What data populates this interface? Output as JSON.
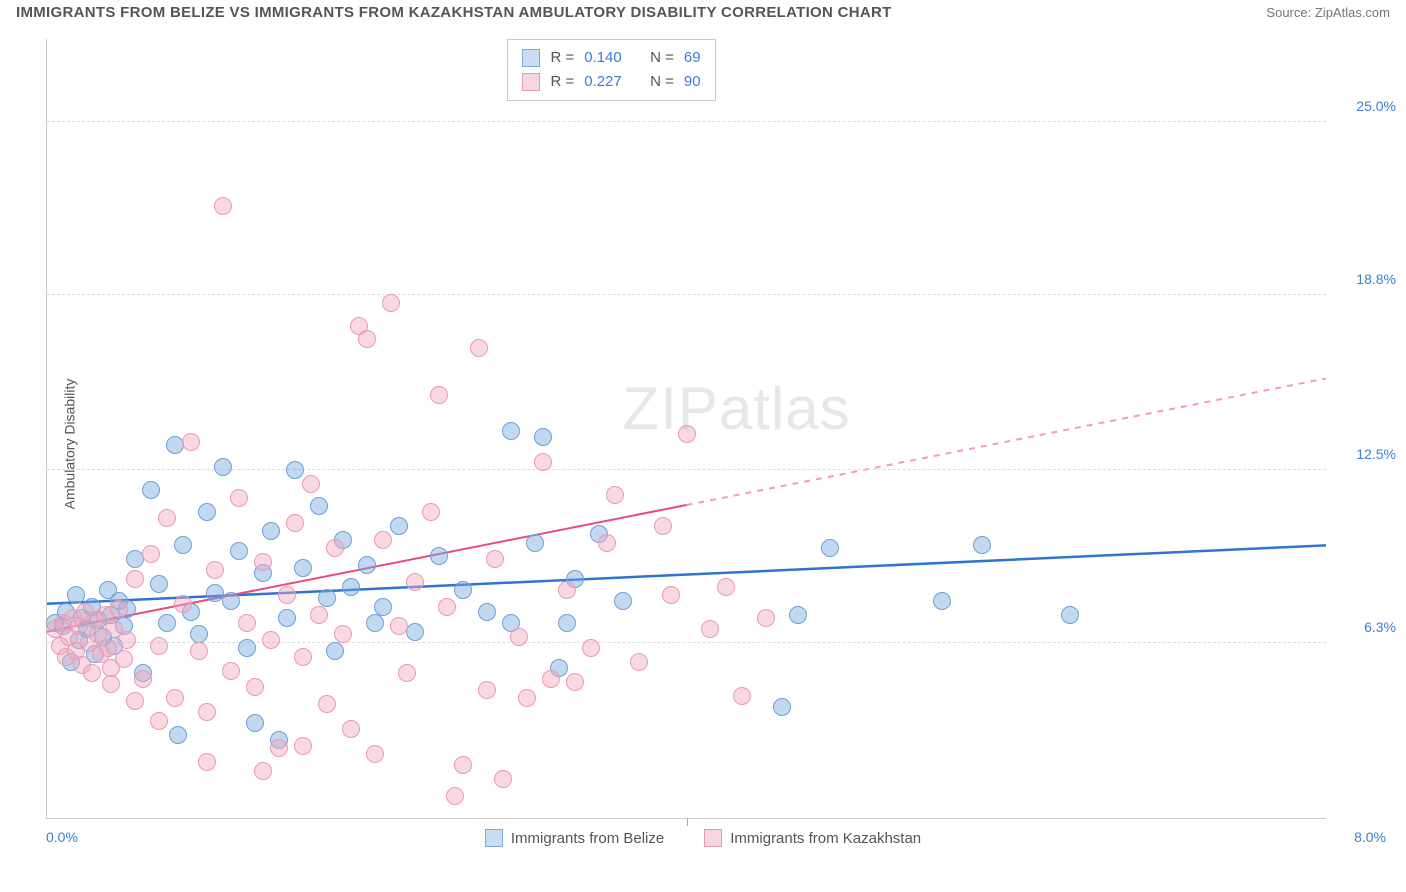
{
  "header": {
    "title": "IMMIGRANTS FROM BELIZE VS IMMIGRANTS FROM KAZAKHSTAN AMBULATORY DISABILITY CORRELATION CHART",
    "source_label": "Source:",
    "source_name": "ZipAtlas.com"
  },
  "chart": {
    "type": "scatter",
    "ylabel": "Ambulatory Disability",
    "xlim": [
      0.0,
      8.0
    ],
    "ylim": [
      0.0,
      28.0
    ],
    "x_ticks": [
      {
        "v": 0.0,
        "label": "0.0%"
      },
      {
        "v": 8.0,
        "label": "8.0%"
      }
    ],
    "x_minor_tick": 4.0,
    "y_ticks": [
      {
        "v": 6.3,
        "label": "6.3%"
      },
      {
        "v": 12.5,
        "label": "12.5%"
      },
      {
        "v": 18.8,
        "label": "18.8%"
      },
      {
        "v": 25.0,
        "label": "25.0%"
      }
    ],
    "background_color": "#ffffff",
    "grid_color": "#dcdcdc",
    "axis_color": "#cccccc",
    "tick_label_color": "#3b7dd8",
    "point_radius": 9,
    "point_opacity": 0.55,
    "watermark": "ZIPatlas",
    "series": [
      {
        "name": "Immigrants from Belize",
        "color_fill": "rgba(120,169,225,0.45)",
        "color_stroke": "#6fa0d8",
        "swatch_fill": "#c8dcf2",
        "swatch_border": "#7fa8d6",
        "R": "0.140",
        "N": "69",
        "regression": {
          "x1": 0.0,
          "y1": 7.7,
          "x2": 8.0,
          "y2": 9.8,
          "xmax_solid": 8.0,
          "color": "#2f74d0",
          "width": 2.5
        },
        "points": [
          [
            0.05,
            7.0
          ],
          [
            0.1,
            6.9
          ],
          [
            0.12,
            7.4
          ],
          [
            0.15,
            5.6
          ],
          [
            0.18,
            8.0
          ],
          [
            0.2,
            6.4
          ],
          [
            0.22,
            7.2
          ],
          [
            0.25,
            6.8
          ],
          [
            0.28,
            7.6
          ],
          [
            0.3,
            5.9
          ],
          [
            0.32,
            7.1
          ],
          [
            0.35,
            6.5
          ],
          [
            0.38,
            8.2
          ],
          [
            0.4,
            7.3
          ],
          [
            0.42,
            6.2
          ],
          [
            0.45,
            7.8
          ],
          [
            0.48,
            6.9
          ],
          [
            0.5,
            7.5
          ],
          [
            0.55,
            9.3
          ],
          [
            0.6,
            5.2
          ],
          [
            0.65,
            11.8
          ],
          [
            0.7,
            8.4
          ],
          [
            0.75,
            7.0
          ],
          [
            0.8,
            13.4
          ],
          [
            0.82,
            3.0
          ],
          [
            0.85,
            9.8
          ],
          [
            0.9,
            7.4
          ],
          [
            0.95,
            6.6
          ],
          [
            1.0,
            11.0
          ],
          [
            1.05,
            8.1
          ],
          [
            1.1,
            12.6
          ],
          [
            1.15,
            7.8
          ],
          [
            1.2,
            9.6
          ],
          [
            1.25,
            6.1
          ],
          [
            1.3,
            3.4
          ],
          [
            1.35,
            8.8
          ],
          [
            1.4,
            10.3
          ],
          [
            1.45,
            2.8
          ],
          [
            1.5,
            7.2
          ],
          [
            1.55,
            12.5
          ],
          [
            1.6,
            9.0
          ],
          [
            1.7,
            11.2
          ],
          [
            1.75,
            7.9
          ],
          [
            1.8,
            6.0
          ],
          [
            1.85,
            10.0
          ],
          [
            1.9,
            8.3
          ],
          [
            2.0,
            9.1
          ],
          [
            2.1,
            7.6
          ],
          [
            2.2,
            10.5
          ],
          [
            2.3,
            6.7
          ],
          [
            2.45,
            9.4
          ],
          [
            2.6,
            8.2
          ],
          [
            2.75,
            7.4
          ],
          [
            2.9,
            13.9
          ],
          [
            3.05,
            9.9
          ],
          [
            3.1,
            13.7
          ],
          [
            3.2,
            5.4
          ],
          [
            3.25,
            7.0
          ],
          [
            3.3,
            8.6
          ],
          [
            3.45,
            10.2
          ],
          [
            3.6,
            7.8
          ],
          [
            4.6,
            4.0
          ],
          [
            4.7,
            7.3
          ],
          [
            4.9,
            9.7
          ],
          [
            5.6,
            7.8
          ],
          [
            5.85,
            9.8
          ],
          [
            6.4,
            7.3
          ],
          [
            2.9,
            7.0
          ],
          [
            2.05,
            7.0
          ]
        ]
      },
      {
        "name": "Immigrants from Kazakhstan",
        "color_fill": "rgba(241,169,191,0.45)",
        "color_stroke": "#e79bb2",
        "swatch_fill": "#f6d6df",
        "swatch_border": "#e29ab2",
        "R": "0.227",
        "N": "90",
        "regression": {
          "x1": 0.0,
          "y1": 6.7,
          "x2": 8.0,
          "y2": 15.8,
          "xmax_solid": 4.0,
          "color": "#e84c7a",
          "width": 2
        },
        "points": [
          [
            0.05,
            6.8
          ],
          [
            0.08,
            6.2
          ],
          [
            0.1,
            7.0
          ],
          [
            0.12,
            5.8
          ],
          [
            0.14,
            6.5
          ],
          [
            0.16,
            7.2
          ],
          [
            0.18,
            6.0
          ],
          [
            0.2,
            6.9
          ],
          [
            0.22,
            5.5
          ],
          [
            0.24,
            7.4
          ],
          [
            0.26,
            6.3
          ],
          [
            0.28,
            5.2
          ],
          [
            0.3,
            7.1
          ],
          [
            0.32,
            6.6
          ],
          [
            0.34,
            5.9
          ],
          [
            0.36,
            7.3
          ],
          [
            0.38,
            6.1
          ],
          [
            0.4,
            5.4
          ],
          [
            0.42,
            6.8
          ],
          [
            0.45,
            7.5
          ],
          [
            0.48,
            5.7
          ],
          [
            0.5,
            6.4
          ],
          [
            0.55,
            8.6
          ],
          [
            0.6,
            5.0
          ],
          [
            0.65,
            9.5
          ],
          [
            0.7,
            6.2
          ],
          [
            0.75,
            10.8
          ],
          [
            0.8,
            4.3
          ],
          [
            0.85,
            7.7
          ],
          [
            0.9,
            13.5
          ],
          [
            0.95,
            6.0
          ],
          [
            1.0,
            3.8
          ],
          [
            1.05,
            8.9
          ],
          [
            1.1,
            22.0
          ],
          [
            1.15,
            5.3
          ],
          [
            1.2,
            11.5
          ],
          [
            1.25,
            7.0
          ],
          [
            1.3,
            4.7
          ],
          [
            1.35,
            9.2
          ],
          [
            1.4,
            6.4
          ],
          [
            1.45,
            2.5
          ],
          [
            1.5,
            8.0
          ],
          [
            1.55,
            10.6
          ],
          [
            1.6,
            5.8
          ],
          [
            1.65,
            12.0
          ],
          [
            1.7,
            7.3
          ],
          [
            1.75,
            4.1
          ],
          [
            1.8,
            9.7
          ],
          [
            1.85,
            6.6
          ],
          [
            1.9,
            3.2
          ],
          [
            1.95,
            17.7
          ],
          [
            2.0,
            17.2
          ],
          [
            2.05,
            2.3
          ],
          [
            2.1,
            10.0
          ],
          [
            2.15,
            18.5
          ],
          [
            2.2,
            6.9
          ],
          [
            2.25,
            5.2
          ],
          [
            2.3,
            8.5
          ],
          [
            2.4,
            11.0
          ],
          [
            2.45,
            15.2
          ],
          [
            2.5,
            7.6
          ],
          [
            2.6,
            1.9
          ],
          [
            2.7,
            16.9
          ],
          [
            2.75,
            4.6
          ],
          [
            2.8,
            9.3
          ],
          [
            2.85,
            1.4
          ],
          [
            2.95,
            6.5
          ],
          [
            3.0,
            4.3
          ],
          [
            3.1,
            12.8
          ],
          [
            3.15,
            5.0
          ],
          [
            3.25,
            8.2
          ],
          [
            3.3,
            4.9
          ],
          [
            3.4,
            6.1
          ],
          [
            3.5,
            9.9
          ],
          [
            3.55,
            11.6
          ],
          [
            3.7,
            5.6
          ],
          [
            3.85,
            10.5
          ],
          [
            3.9,
            8.0
          ],
          [
            4.0,
            13.8
          ],
          [
            4.15,
            6.8
          ],
          [
            4.25,
            8.3
          ],
          [
            4.35,
            4.4
          ],
          [
            4.5,
            7.2
          ],
          [
            2.55,
            0.8
          ],
          [
            1.0,
            2.0
          ],
          [
            1.35,
            1.7
          ],
          [
            1.6,
            2.6
          ],
          [
            0.55,
            4.2
          ],
          [
            0.7,
            3.5
          ],
          [
            0.4,
            4.8
          ]
        ]
      }
    ],
    "stats_box_labels": {
      "R": "R =",
      "N": "N ="
    },
    "bottom_legend_gap": 40
  }
}
